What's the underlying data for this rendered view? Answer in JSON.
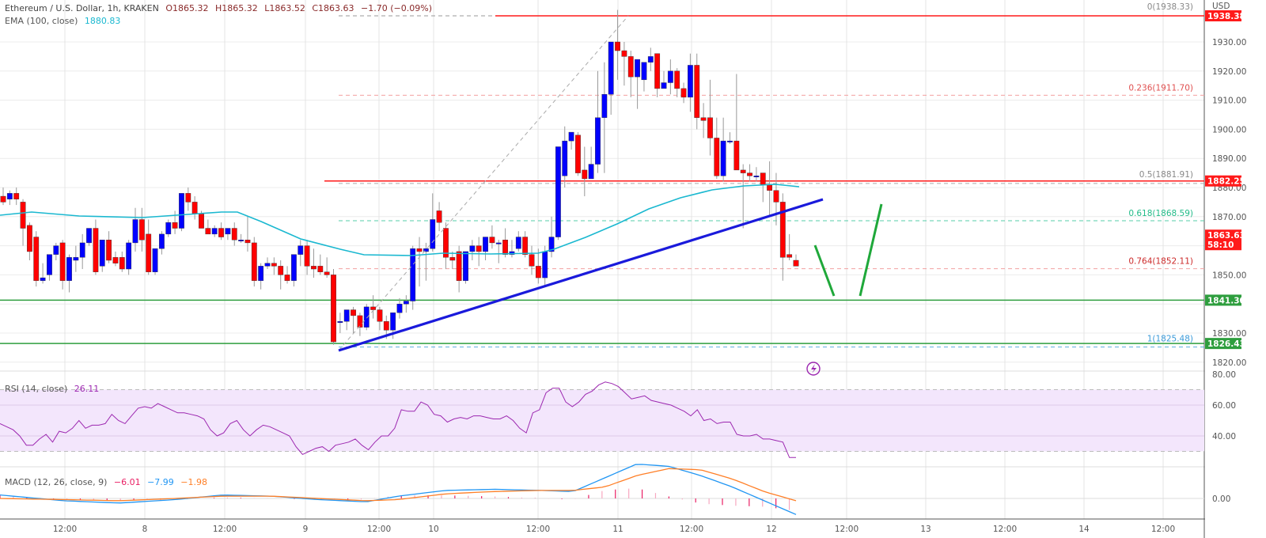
{
  "header": {
    "symbol": "Ethereum / U.S. Dollar, 1h, KRAKEN",
    "open": "O1865.32",
    "high": "H1865.32",
    "low": "L1863.52",
    "close": "C1863.63",
    "change": "−1.70 (−0.09%)",
    "ema_label": "EMA (100, close)",
    "ema_value": "1880.83"
  },
  "rsi": {
    "label": "RSI (14, close)",
    "value": "26.11"
  },
  "macd": {
    "label": "MACD (12, 26, close, 9)",
    "hist": "−6.01",
    "macd": "−7.99",
    "signal": "−1.98"
  },
  "price_axis": {
    "currency": "USD",
    "ticks": [
      "1930.00",
      "1920.00",
      "1910.00",
      "1900.00",
      "1890.00",
      "1880.00",
      "1870.00",
      "1850.00",
      "1830.00",
      "1820.00"
    ],
    "rsi_ticks": [
      "80.00",
      "60.00",
      "40.00"
    ],
    "macd_ticks": [
      "0.00"
    ]
  },
  "price_tags": [
    {
      "value": "1938.38",
      "color": "#ff1a1a"
    },
    {
      "value": "1882.25",
      "color": "#ff1a1a"
    },
    {
      "value": "1863.63",
      "sub": "58:10",
      "color": "#ff1a1a"
    },
    {
      "value": "1841.30",
      "color": "#2e9e3e"
    },
    {
      "value": "1826.43",
      "color": "#2e9e3e"
    }
  ],
  "fib_levels": [
    {
      "label": "0(1938.33)",
      "color": "#888888"
    },
    {
      "label": "0.236(1911.70)",
      "color": "#e05050"
    },
    {
      "label": "0.5(1881.91)",
      "color": "#888888"
    },
    {
      "label": "0.618(1868.59)",
      "color": "#22bb88"
    },
    {
      "label": "0.764(1852.11)",
      "color": "#cc2a2a"
    },
    {
      "label": "1(1825.48)",
      "color": "#3a9ad9"
    }
  ],
  "time_axis": [
    "12:00",
    "8",
    "12:00",
    "9",
    "12:00",
    "10",
    "12:00",
    "11",
    "12:00",
    "12",
    "12:00",
    "13",
    "12:00",
    "14",
    "12:00"
  ],
  "colors": {
    "up": "#0000ff",
    "down": "#ff0000",
    "ema": "#1ab8d0",
    "rsi": "#9c27b0",
    "macd": "#2196f3",
    "signal": "#ff7f27",
    "trendline": "#1a1adb",
    "support": "#2e9e3e",
    "resistance": "#ff1a1a",
    "projection": "#1fa83a"
  },
  "chart_data": {
    "type": "candlestick",
    "title": "Ethereum / U.S. Dollar, 1h, KRAKEN",
    "ylabel": "USD",
    "ylim": [
      1818,
      1943
    ],
    "x": [
      "7 12:00",
      "8",
      "8 12:00",
      "9",
      "9 12:00",
      "10",
      "10 12:00",
      "11",
      "11 12:00",
      "12"
    ],
    "ohlc_note": "hourly candles from 7 ~08:00 to 12 ~03:00; prices approximate",
    "last": {
      "open": 1865.32,
      "high": 1865.32,
      "low": 1863.52,
      "close": 1863.63,
      "change": -1.7,
      "change_pct": -0.09
    },
    "ema100_last": 1880.83,
    "horizontal_levels": {
      "resistance": [
        1938.38,
        1882.25
      ],
      "support": [
        1841.3,
        1826.43
      ]
    },
    "fibonacci": [
      {
        "level": 0,
        "price": 1938.33
      },
      {
        "level": 0.236,
        "price": 1911.7
      },
      {
        "level": 0.5,
        "price": 1881.91
      },
      {
        "level": 0.618,
        "price": 1868.59
      },
      {
        "level": 0.764,
        "price": 1852.11
      },
      {
        "level": 1,
        "price": 1825.48
      }
    ],
    "trendline": {
      "from": 1825.5,
      "to": 1876,
      "style": "bullish trendline (broken)"
    },
    "rsi": {
      "period": 14,
      "last": 26.11,
      "bands": [
        30,
        70
      ]
    },
    "macd": {
      "params": [
        12,
        26,
        9
      ],
      "hist": -6.01,
      "macd": -7.99,
      "signal": -1.98
    }
  }
}
